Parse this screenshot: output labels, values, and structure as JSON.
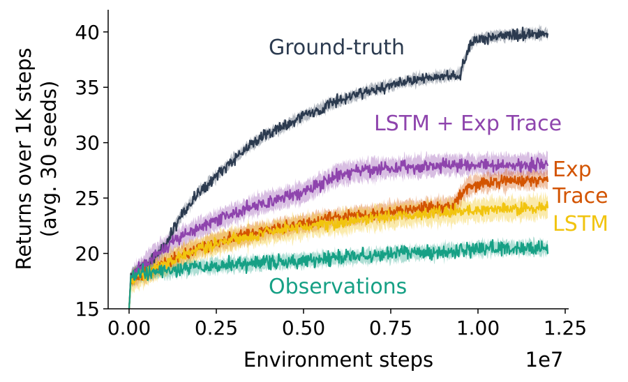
{
  "chart_data": {
    "type": "line",
    "xlabel": "Environment steps",
    "x_offset_label": "1e7",
    "ylabel_lines": [
      "Returns over 1K steps",
      "(avg. 30 seeds)"
    ],
    "xlim": [
      -0.06,
      1.26
    ],
    "ylim": [
      15,
      42
    ],
    "x_ticks": [
      0.0,
      0.25,
      0.5,
      0.75,
      1.0,
      1.25
    ],
    "x_tick_labels": [
      "0.00",
      "0.25",
      "0.50",
      "0.75",
      "1.00",
      "1.25"
    ],
    "y_ticks": [
      15,
      20,
      25,
      30,
      35,
      40
    ],
    "y_tick_labels": [
      "15",
      "20",
      "25",
      "30",
      "35",
      "40"
    ],
    "grid": false,
    "series": [
      {
        "name": "Ground-truth",
        "color": "#2b3a4f",
        "label_lines": [
          "Ground-truth"
        ],
        "x": [
          0.0,
          0.005,
          0.02,
          0.05,
          0.1,
          0.15,
          0.2,
          0.25,
          0.3,
          0.35,
          0.4,
          0.45,
          0.5,
          0.55,
          0.6,
          0.65,
          0.7,
          0.75,
          0.8,
          0.85,
          0.9,
          0.95,
          0.96,
          0.97,
          0.98,
          1.0,
          1.05,
          1.1,
          1.15,
          1.2
        ],
        "y": [
          15.0,
          18.0,
          18.5,
          19.0,
          20.5,
          23.5,
          25.5,
          27.0,
          28.5,
          29.8,
          30.8,
          31.6,
          32.4,
          33.1,
          33.8,
          34.3,
          34.8,
          35.2,
          35.6,
          35.8,
          36.0,
          36.2,
          37.2,
          38.2,
          39.0,
          39.4,
          39.6,
          39.7,
          39.8,
          39.9
        ],
        "noise": 0.45,
        "band": 0.45
      },
      {
        "name": "LSTM + Exp Trace",
        "color": "#8e44ad",
        "label_lines": [
          "LSTM + Exp Trace"
        ],
        "x": [
          0.0,
          0.005,
          0.02,
          0.05,
          0.1,
          0.15,
          0.2,
          0.25,
          0.3,
          0.35,
          0.4,
          0.45,
          0.5,
          0.55,
          0.6,
          0.65,
          0.7,
          0.75,
          0.8,
          0.85,
          0.9,
          0.95,
          1.0,
          1.05,
          1.1,
          1.15,
          1.2
        ],
        "y": [
          15.0,
          17.8,
          18.3,
          19.2,
          20.5,
          21.5,
          22.3,
          23.0,
          23.6,
          24.2,
          24.7,
          25.1,
          25.5,
          26.3,
          27.1,
          27.4,
          27.6,
          27.7,
          27.8,
          27.9,
          28.0,
          28.0,
          28.0,
          28.0,
          28.0,
          28.0,
          28.1
        ],
        "noise": 0.5,
        "band": 0.9
      },
      {
        "name": "Exp Trace",
        "color": "#d35400",
        "label_lines": [
          "Exp",
          "Trace"
        ],
        "x": [
          0.0,
          0.005,
          0.02,
          0.05,
          0.1,
          0.15,
          0.2,
          0.25,
          0.3,
          0.35,
          0.4,
          0.45,
          0.5,
          0.55,
          0.6,
          0.65,
          0.7,
          0.75,
          0.8,
          0.85,
          0.9,
          0.93,
          0.95,
          0.97,
          1.0,
          1.05,
          1.1,
          1.15,
          1.2
        ],
        "y": [
          15.0,
          17.6,
          17.9,
          18.3,
          19.0,
          19.8,
          20.5,
          21.0,
          21.4,
          21.8,
          22.1,
          22.4,
          22.7,
          23.0,
          23.2,
          23.4,
          23.6,
          23.8,
          24.0,
          24.1,
          24.2,
          24.3,
          25.2,
          26.0,
          26.3,
          26.5,
          26.6,
          26.6,
          26.7
        ],
        "noise": 0.45,
        "band": 0.8
      },
      {
        "name": "LSTM",
        "color": "#f1c40f",
        "label_lines": [
          "LSTM"
        ],
        "x": [
          0.0,
          0.005,
          0.02,
          0.05,
          0.1,
          0.15,
          0.2,
          0.25,
          0.3,
          0.35,
          0.4,
          0.45,
          0.5,
          0.55,
          0.6,
          0.65,
          0.7,
          0.75,
          0.8,
          0.85,
          0.9,
          0.95,
          1.0,
          1.05,
          1.1,
          1.15,
          1.2
        ],
        "y": [
          15.0,
          17.4,
          17.8,
          18.2,
          19.0,
          19.8,
          20.4,
          20.9,
          21.3,
          21.6,
          21.9,
          22.1,
          22.4,
          22.6,
          22.8,
          23.0,
          23.2,
          23.3,
          23.5,
          23.6,
          23.7,
          23.8,
          23.9,
          24.0,
          24.0,
          24.1,
          24.2
        ],
        "noise": 0.45,
        "band": 1.0
      },
      {
        "name": "Observations",
        "color": "#16a085",
        "label_lines": [
          "Observations"
        ],
        "x": [
          0.0,
          0.005,
          0.02,
          0.05,
          0.1,
          0.15,
          0.2,
          0.25,
          0.3,
          0.35,
          0.4,
          0.45,
          0.5,
          0.55,
          0.6,
          0.65,
          0.7,
          0.75,
          0.8,
          0.85,
          0.9,
          0.95,
          1.0,
          1.05,
          1.1,
          1.15,
          1.2
        ],
        "y": [
          15.0,
          17.8,
          18.2,
          18.3,
          18.4,
          18.6,
          18.8,
          18.9,
          19.0,
          19.1,
          19.2,
          19.3,
          19.4,
          19.5,
          19.6,
          19.7,
          19.8,
          19.9,
          20.0,
          20.1,
          20.2,
          20.3,
          20.4,
          20.5,
          20.5,
          20.5,
          20.5
        ],
        "noise": 0.55,
        "band": 0.6
      }
    ]
  }
}
